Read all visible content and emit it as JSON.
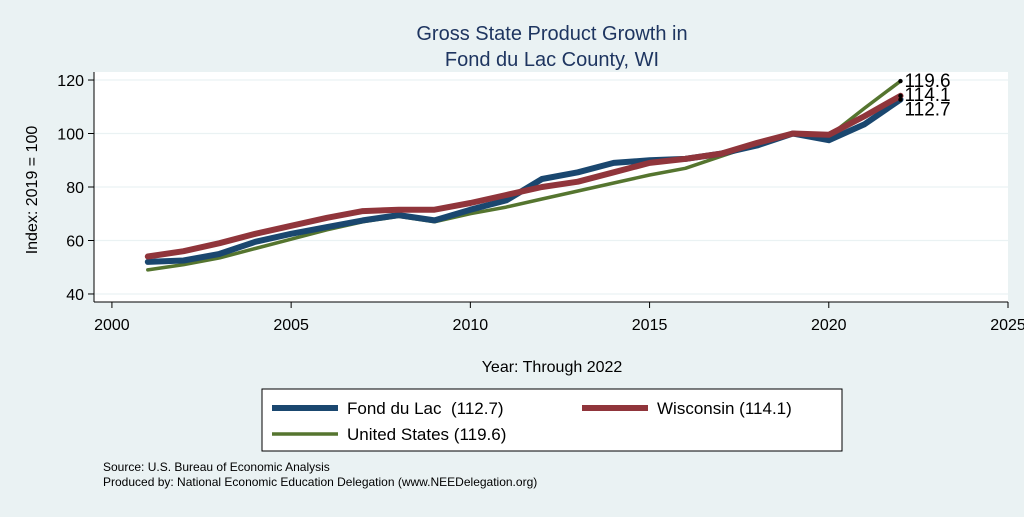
{
  "chart_data": {
    "type": "line",
    "title": "Gross State Product Growth in",
    "subtitle": "Fond du Lac County, WI",
    "xlabel": "Year: Through 2022",
    "ylabel": "Index: 2019 = 100",
    "xlim": [
      1999.5,
      2025
    ],
    "ylim": [
      37,
      123
    ],
    "xticks": [
      2000,
      2005,
      2010,
      2015,
      2020,
      2025
    ],
    "yticks": [
      40,
      60,
      80,
      100,
      120
    ],
    "grid": "horizontal",
    "legend_placement": "bottom",
    "x": [
      2001,
      2002,
      2003,
      2004,
      2005,
      2006,
      2007,
      2008,
      2009,
      2010,
      2011,
      2012,
      2013,
      2014,
      2015,
      2016,
      2017,
      2018,
      2019,
      2020,
      2021,
      2022
    ],
    "series": [
      {
        "name": "Fond du Lac",
        "legend_label": "Fond du Lac  (112.7)",
        "color": "#1a476f",
        "end_label": "112.7",
        "values": [
          52.0,
          52.5,
          55.0,
          59.5,
          62.5,
          65.0,
          67.5,
          69.5,
          67.5,
          71.5,
          75.0,
          83.0,
          85.5,
          89.0,
          90.0,
          90.5,
          92.5,
          95.5,
          100.0,
          97.5,
          103.5,
          112.7
        ]
      },
      {
        "name": "Wisconsin",
        "legend_label": "Wisconsin (114.1)",
        "color": "#90353b",
        "end_label": "114.1",
        "values": [
          54.0,
          56.0,
          59.0,
          62.5,
          65.5,
          68.5,
          71.0,
          71.5,
          71.5,
          74.0,
          77.0,
          80.0,
          82.0,
          85.5,
          89.0,
          90.5,
          92.5,
          96.5,
          100.0,
          99.5,
          106.5,
          114.1
        ]
      },
      {
        "name": "United States",
        "legend_label": "United States (119.6)",
        "color": "#55752f",
        "end_label": "119.6",
        "values": [
          49.0,
          51.0,
          53.5,
          57.0,
          60.5,
          64.0,
          67.0,
          69.0,
          67.0,
          70.0,
          72.5,
          75.5,
          78.5,
          81.5,
          84.5,
          87.0,
          91.5,
          96.0,
          100.0,
          99.0,
          109.5,
          119.6
        ]
      }
    ]
  },
  "notes": {
    "source": "Source: U.S. Bureau of Economic Analysis",
    "produced": "Produced by: National Economic Education Delegation (www.NEEDelegation.org)"
  }
}
